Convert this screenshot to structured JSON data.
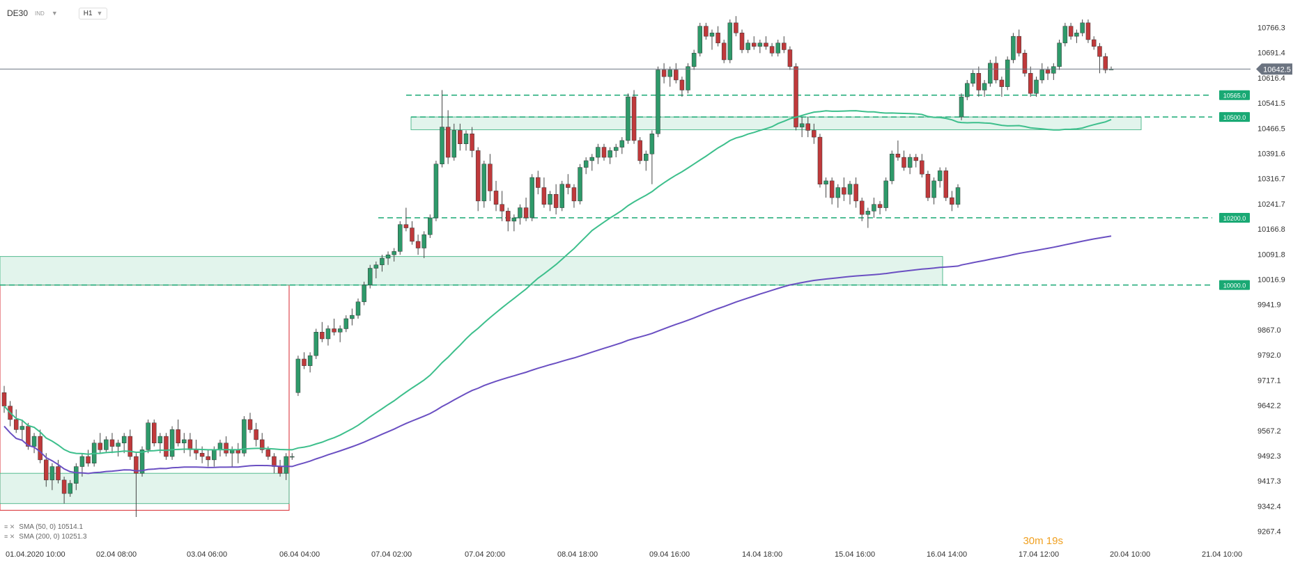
{
  "header": {
    "symbol": "DE30",
    "symbol_sub": "IND",
    "timeframe": "H1"
  },
  "legend": [
    {
      "text": "SMA (50, 0) 10514.1",
      "color": "#3dbf8c"
    },
    {
      "text": "SMA (200, 0) 10251.3",
      "color": "#6a4fc2"
    }
  ],
  "timer": "30m 19s",
  "colors": {
    "up": "#2e9a6a",
    "down": "#c0393b",
    "sma50": "#3dbf8c",
    "sma200": "#6a4fc2",
    "zone_fill": "#dff3eb",
    "zone_border": "#44b485",
    "box_border": "#d7262c",
    "hline": "#19a974",
    "price_line": "#6b7380",
    "price_tag": "#6b7380"
  },
  "chart_data": {
    "type": "candlestick",
    "x_tick_labels": [
      "01.04.2020  10:00",
      "02.04  08:00",
      "03.04  06:00",
      "06.04  04:00",
      "07.04  02:00",
      "07.04  20:00",
      "08.04  18:00",
      "09.04  16:00",
      "14.04  18:00",
      "15.04  16:00",
      "16.04  14:00",
      "17.04  12:00",
      "20.04  10:00",
      "21.04  10:00"
    ],
    "y_tick_labels": [
      "10766.3",
      "10691.4",
      "10616.4",
      "10541.5",
      "10466.5",
      "10391.6",
      "10316.7",
      "10241.7",
      "10166.8",
      "10091.8",
      "10016.9",
      "9941.9",
      "9867.0",
      "9792.0",
      "9717.1",
      "9642.2",
      "9567.2",
      "9492.3",
      "9417.3",
      "9342.4",
      "9267.4"
    ],
    "ylim": [
      9250,
      10790
    ],
    "last_price": "10642.5",
    "levels": [
      {
        "value": 10565.0,
        "label": "10565.0"
      },
      {
        "value": 10500.0,
        "label": "10500.0"
      },
      {
        "value": 10200.0,
        "label": "10200.0"
      },
      {
        "value": 10000.0,
        "label": "10000.0"
      }
    ],
    "candles_h1": [
      [
        9680,
        9700,
        9620,
        9640
      ],
      [
        9640,
        9655,
        9580,
        9600
      ],
      [
        9600,
        9630,
        9560,
        9570
      ],
      [
        9570,
        9600,
        9540,
        9580
      ],
      [
        9580,
        9590,
        9510,
        9520
      ],
      [
        9520,
        9560,
        9500,
        9550
      ],
      [
        9550,
        9570,
        9470,
        9480
      ],
      [
        9480,
        9500,
        9400,
        9420
      ],
      [
        9420,
        9470,
        9390,
        9460
      ],
      [
        9460,
        9480,
        9410,
        9420
      ],
      [
        9420,
        9430,
        9350,
        9380
      ],
      [
        9380,
        9420,
        9370,
        9410
      ],
      [
        9410,
        9470,
        9390,
        9460
      ],
      [
        9460,
        9500,
        9430,
        9490
      ],
      [
        9490,
        9510,
        9460,
        9470
      ],
      [
        9470,
        9540,
        9460,
        9530
      ],
      [
        9530,
        9560,
        9500,
        9510
      ],
      [
        9510,
        9550,
        9500,
        9540
      ],
      [
        9540,
        9560,
        9500,
        9520
      ],
      [
        9520,
        9540,
        9490,
        9530
      ],
      [
        9530,
        9560,
        9500,
        9550
      ],
      [
        9550,
        9570,
        9480,
        9490
      ],
      [
        9490,
        9500,
        9310,
        9440
      ],
      [
        9440,
        9520,
        9430,
        9510
      ],
      [
        9510,
        9600,
        9500,
        9590
      ],
      [
        9590,
        9600,
        9520,
        9530
      ],
      [
        9530,
        9560,
        9500,
        9550
      ],
      [
        9550,
        9560,
        9480,
        9490
      ],
      [
        9490,
        9580,
        9480,
        9570
      ],
      [
        9570,
        9600,
        9520,
        9530
      ],
      [
        9530,
        9560,
        9500,
        9540
      ],
      [
        9540,
        9560,
        9490,
        9510
      ],
      [
        9510,
        9540,
        9480,
        9500
      ],
      [
        9500,
        9520,
        9470,
        9490
      ],
      [
        9490,
        9510,
        9460,
        9480
      ],
      [
        9480,
        9520,
        9460,
        9510
      ],
      [
        9510,
        9540,
        9490,
        9530
      ],
      [
        9530,
        9550,
        9490,
        9500
      ],
      [
        9500,
        9520,
        9460,
        9510
      ],
      [
        9510,
        9530,
        9470,
        9500
      ],
      [
        9500,
        9610,
        9490,
        9600
      ],
      [
        9600,
        9620,
        9560,
        9570
      ],
      [
        9570,
        9590,
        9520,
        9540
      ],
      [
        9540,
        9560,
        9500,
        9510
      ],
      [
        9510,
        9520,
        9480,
        9490
      ],
      [
        9490,
        9500,
        9440,
        9460
      ],
      [
        9460,
        9480,
        9430,
        9440
      ],
      [
        9440,
        9500,
        9420,
        9490
      ],
      [
        9490,
        9500,
        9480,
        9490
      ],
      [
        9680,
        9790,
        9670,
        9780
      ],
      [
        9780,
        9800,
        9750,
        9760
      ],
      [
        9760,
        9800,
        9740,
        9790
      ],
      [
        9790,
        9870,
        9780,
        9860
      ],
      [
        9860,
        9890,
        9830,
        9840
      ],
      [
        9840,
        9880,
        9820,
        9870
      ],
      [
        9870,
        9900,
        9850,
        9860
      ],
      [
        9860,
        9880,
        9830,
        9870
      ],
      [
        9870,
        9910,
        9860,
        9900
      ],
      [
        9900,
        9930,
        9880,
        9910
      ],
      [
        9910,
        9960,
        9900,
        9950
      ],
      [
        9950,
        10010,
        9940,
        10000
      ],
      [
        10000,
        10060,
        9990,
        10050
      ],
      [
        10050,
        10070,
        10020,
        10060
      ],
      [
        10060,
        10090,
        10040,
        10080
      ],
      [
        10080,
        10100,
        10060,
        10090
      ],
      [
        10090,
        10110,
        10070,
        10100
      ],
      [
        10100,
        10190,
        10090,
        10180
      ],
      [
        10180,
        10230,
        10160,
        10170
      ],
      [
        10170,
        10190,
        10120,
        10130
      ],
      [
        10130,
        10150,
        10090,
        10110
      ],
      [
        10110,
        10160,
        10080,
        10150
      ],
      [
        10150,
        10210,
        10140,
        10200
      ],
      [
        10200,
        10370,
        10190,
        10360
      ],
      [
        10360,
        10580,
        10350,
        10470
      ],
      [
        10470,
        10520,
        10360,
        10380
      ],
      [
        10380,
        10480,
        10370,
        10460
      ],
      [
        10460,
        10480,
        10400,
        10420
      ],
      [
        10420,
        10460,
        10400,
        10450
      ],
      [
        10450,
        10470,
        10380,
        10400
      ],
      [
        10400,
        10410,
        10220,
        10250
      ],
      [
        10250,
        10370,
        10230,
        10360
      ],
      [
        10360,
        10390,
        10250,
        10280
      ],
      [
        10280,
        10310,
        10220,
        10240
      ],
      [
        10240,
        10280,
        10190,
        10220
      ],
      [
        10220,
        10230,
        10160,
        10190
      ],
      [
        10190,
        10210,
        10160,
        10200
      ],
      [
        10200,
        10240,
        10180,
        10230
      ],
      [
        10230,
        10260,
        10190,
        10200
      ],
      [
        10200,
        10330,
        10190,
        10320
      ],
      [
        10320,
        10340,
        10270,
        10290
      ],
      [
        10290,
        10320,
        10230,
        10240
      ],
      [
        10240,
        10280,
        10220,
        10270
      ],
      [
        10270,
        10300,
        10210,
        10230
      ],
      [
        10230,
        10310,
        10220,
        10300
      ],
      [
        10300,
        10330,
        10270,
        10290
      ],
      [
        10290,
        10300,
        10230,
        10250
      ],
      [
        10250,
        10360,
        10240,
        10350
      ],
      [
        10350,
        10380,
        10330,
        10370
      ],
      [
        10370,
        10390,
        10340,
        10380
      ],
      [
        10380,
        10420,
        10360,
        10410
      ],
      [
        10410,
        10420,
        10370,
        10380
      ],
      [
        10380,
        10410,
        10360,
        10400
      ],
      [
        10400,
        10420,
        10380,
        10410
      ],
      [
        10410,
        10440,
        10390,
        10430
      ],
      [
        10430,
        10570,
        10420,
        10560
      ],
      [
        10560,
        10580,
        10420,
        10430
      ],
      [
        10430,
        10440,
        10360,
        10370
      ],
      [
        10370,
        10400,
        10340,
        10390
      ],
      [
        10390,
        10460,
        10300,
        10450
      ],
      [
        10450,
        10650,
        10440,
        10640
      ],
      [
        10640,
        10660,
        10600,
        10620
      ],
      [
        10620,
        10650,
        10590,
        10640
      ],
      [
        10640,
        10660,
        10600,
        10610
      ],
      [
        10610,
        10620,
        10560,
        10580
      ],
      [
        10580,
        10660,
        10570,
        10650
      ],
      [
        10650,
        10700,
        10640,
        10690
      ],
      [
        10690,
        10780,
        10680,
        10770
      ],
      [
        10770,
        10780,
        10730,
        10740
      ],
      [
        10740,
        10760,
        10700,
        10750
      ],
      [
        10750,
        10770,
        10710,
        10720
      ],
      [
        10720,
        10730,
        10660,
        10670
      ],
      [
        10670,
        10790,
        10660,
        10780
      ],
      [
        10780,
        10800,
        10740,
        10750
      ],
      [
        10750,
        10760,
        10690,
        10700
      ],
      [
        10700,
        10730,
        10690,
        10720
      ],
      [
        10720,
        10740,
        10700,
        10710
      ],
      [
        10710,
        10730,
        10690,
        10720
      ],
      [
        10720,
        10740,
        10700,
        10710
      ],
      [
        10710,
        10720,
        10680,
        10690
      ],
      [
        10690,
        10730,
        10680,
        10720
      ],
      [
        10720,
        10740,
        10690,
        10700
      ],
      [
        10700,
        10710,
        10640,
        10650
      ],
      [
        10650,
        10660,
        10460,
        10470
      ],
      [
        10470,
        10500,
        10440,
        10480
      ],
      [
        10480,
        10500,
        10440,
        10460
      ],
      [
        10460,
        10480,
        10420,
        10440
      ],
      [
        10440,
        10450,
        10290,
        10300
      ],
      [
        10300,
        10320,
        10260,
        10310
      ],
      [
        10310,
        10320,
        10240,
        10260
      ],
      [
        10260,
        10300,
        10230,
        10290
      ],
      [
        10290,
        10320,
        10250,
        10270
      ],
      [
        10270,
        10310,
        10240,
        10300
      ],
      [
        10300,
        10320,
        10230,
        10250
      ],
      [
        10250,
        10260,
        10190,
        10210
      ],
      [
        10210,
        10230,
        10170,
        10220
      ],
      [
        10220,
        10260,
        10200,
        10240
      ],
      [
        10240,
        10250,
        10210,
        10230
      ],
      [
        10230,
        10320,
        10220,
        10310
      ],
      [
        10310,
        10400,
        10300,
        10390
      ],
      [
        10390,
        10430,
        10370,
        10380
      ],
      [
        10380,
        10400,
        10340,
        10350
      ],
      [
        10350,
        10390,
        10330,
        10380
      ],
      [
        10380,
        10390,
        10350,
        10370
      ],
      [
        10370,
        10390,
        10320,
        10330
      ],
      [
        10330,
        10340,
        10250,
        10260
      ],
      [
        10260,
        10320,
        10240,
        10310
      ],
      [
        10310,
        10350,
        10290,
        10340
      ],
      [
        10340,
        10350,
        10250,
        10260
      ],
      [
        10260,
        10280,
        10220,
        10240
      ],
      [
        10240,
        10300,
        10230,
        10290
      ]
    ],
    "candles_h1_right": [
      [
        10500,
        10570,
        10490,
        10560
      ],
      [
        10560,
        10610,
        10550,
        10600
      ],
      [
        10600,
        10640,
        10590,
        10630
      ],
      [
        10630,
        10650,
        10560,
        10580
      ],
      [
        10580,
        10610,
        10560,
        10600
      ],
      [
        10600,
        10670,
        10590,
        10660
      ],
      [
        10660,
        10680,
        10600,
        10610
      ],
      [
        10610,
        10620,
        10560,
        10590
      ],
      [
        10590,
        10680,
        10580,
        10670
      ],
      [
        10670,
        10750,
        10660,
        10740
      ],
      [
        10740,
        10760,
        10680,
        10690
      ],
      [
        10690,
        10700,
        10620,
        10630
      ],
      [
        10630,
        10650,
        10560,
        10570
      ],
      [
        10570,
        10620,
        10560,
        10610
      ],
      [
        10610,
        10660,
        10600,
        10640
      ],
      [
        10640,
        10650,
        10610,
        10630
      ],
      [
        10630,
        10660,
        10610,
        10650
      ],
      [
        10650,
        10730,
        10640,
        10720
      ],
      [
        10720,
        10780,
        10710,
        10770
      ],
      [
        10770,
        10780,
        10730,
        10740
      ],
      [
        10740,
        10760,
        10720,
        10750
      ],
      [
        10750,
        10790,
        10740,
        10780
      ],
      [
        10780,
        10790,
        10720,
        10730
      ],
      [
        10730,
        10740,
        10700,
        10710
      ],
      [
        10710,
        10720,
        10630,
        10680
      ],
      [
        10680,
        10690,
        10630,
        10640
      ],
      [
        10640,
        10650,
        10640,
        10642.5
      ]
    ]
  }
}
